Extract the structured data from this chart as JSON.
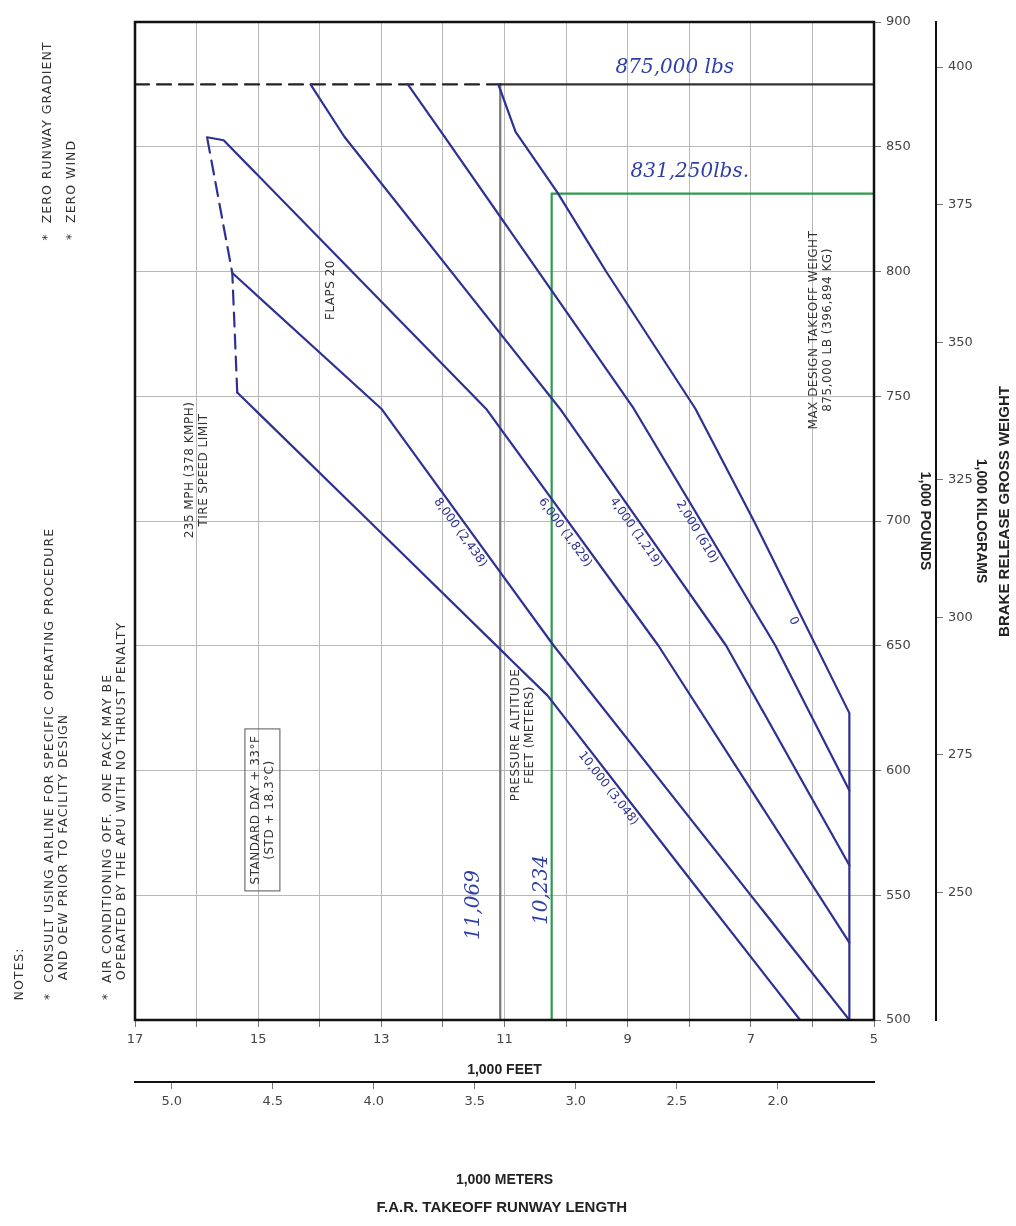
{
  "chart_data": {
    "type": "line",
    "xlabel": "1,000 FEET",
    "x2label": "1,000 METERS",
    "ylabel": "1,000 POUNDS",
    "y2label": "1,000 KILOGRAMS",
    "xlim": [
      17,
      5
    ],
    "xticks": [
      17,
      {
        "value": 16,
        "label": null
      },
      15,
      {
        "value": 14,
        "label": null
      },
      13,
      {
        "value": 12,
        "label": null
      },
      11,
      {
        "value": 10,
        "label": null
      },
      9,
      {
        "value": 8,
        "label": null
      },
      7,
      {
        "value": 6,
        "label": null
      },
      5
    ],
    "x2lim": [
      5.182,
      1.524
    ],
    "x2ticks": [
      {
        "value": 5,
        "label": "5.0"
      },
      {
        "value": 4.5,
        "label": "4.5"
      },
      {
        "value": 4,
        "label": "4.0"
      },
      {
        "value": 3.5,
        "label": "3.5"
      },
      {
        "value": 3,
        "label": "3.0"
      },
      {
        "value": 2.5,
        "label": "2.5"
      },
      {
        "value": 2,
        "label": "2.0"
      }
    ],
    "ylim": [
      500,
      900
    ],
    "yticks": [
      500,
      550,
      600,
      650,
      700,
      750,
      800,
      850,
      900
    ],
    "y2lim": [
      226.8,
      408.2
    ],
    "y2ticks": [
      250,
      275,
      300,
      325,
      350,
      375,
      400
    ],
    "grid": true,
    "legend": false,
    "marker": "none",
    "line_style": "solid",
    "series": [
      {
        "name": "0",
        "color": "#2e3192",
        "x": [
          5.4,
          5.4,
          6.95,
          7.9,
          9.35,
          10.15,
          10.82,
          11.1
        ],
        "values": [
          500,
          623,
          700,
          745,
          800,
          832,
          856,
          875
        ]
      },
      {
        "name": "2,000 (610)",
        "color": "#2e3192",
        "x": [
          5.4,
          6.6,
          8.9,
          12.0,
          12.57
        ],
        "values": [
          592,
          650,
          745,
          855,
          875
        ]
      },
      {
        "name": "4,000 (1,219)",
        "color": "#2e3192",
        "x": [
          5.4,
          7.4,
          10.1,
          13.6,
          14.15
        ],
        "values": [
          562,
          650,
          745,
          854,
          875
        ]
      },
      {
        "name": "6,000 (1,829)",
        "color": "#2e3192",
        "x": [
          5.4,
          8.5,
          11.3,
          15.56,
          15.83
        ],
        "values": [
          531,
          650,
          745,
          852.6,
          853.8
        ]
      },
      {
        "name": "8,000 (2,438)",
        "color": "#2e3192",
        "x": [
          5.4,
          10.2,
          13.0,
          15.42
        ],
        "values": [
          500,
          650,
          745,
          799.4
        ]
      },
      {
        "name": "10,000 (3,048)",
        "color": "#2e3192",
        "x": [
          6.2,
          8.1,
          10.3,
          13.2,
          15.34
        ],
        "values": [
          500,
          560,
          630,
          700,
          751.5
        ]
      },
      {
        "color": "#2e3192",
        "line_style": "dashed",
        "x": [
          15.34,
          15.42,
          15.83
        ],
        "values": [
          751.5,
          799.4,
          853.8
        ]
      },
      {
        "color": "#222222",
        "line_style": "dashed",
        "x": [
          17,
          11.069
        ],
        "values": [
          875,
          875
        ]
      },
      {
        "color": "#333333",
        "x": [
          11.069,
          5
        ],
        "values": [
          875,
          875
        ]
      },
      {
        "color": "#777777",
        "x": [
          11.069,
          11.069
        ],
        "values": [
          875,
          500
        ]
      },
      {
        "color": "#2e9a4e",
        "x": [
          5,
          10.234,
          10.234
        ],
        "values": [
          831.25,
          831.25,
          500
        ]
      }
    ],
    "annotations": [
      "NOTES:",
      "*  CONSULT USING AIRLINE FOR SPECIFIC OPERATING PROCEDURE\n    AND OEW PRIOR TO FACILITY DESIGN",
      "*  AIR CONDITIONING OFF.  ONE PACK MAY BE\n    OPERATED BY THE APU WITH NO THRUST PENALTY",
      "*  ZERO RUNWAY GRADIENT",
      "*  ZERO WIND",
      "F.A.R. TAKEOFF RUNWAY LENGTH",
      "BRAKE RELEASE GROSS WEIGHT",
      "STANDARD DAY + 33°F\n(STD + 18.3°C)",
      "235 MPH (378 KMPH)\nTIRE SPEED LIMIT",
      "FLAPS 20",
      "PRESSURE ALTITUDE\nFEET (METERS)",
      "MAX DESIGN TAKEOFF WEIGHT\n875,000 LB (396,894 KG)",
      "875,000 lbs",
      "831,250lbs.",
      "11,069",
      "10,234"
    ]
  }
}
